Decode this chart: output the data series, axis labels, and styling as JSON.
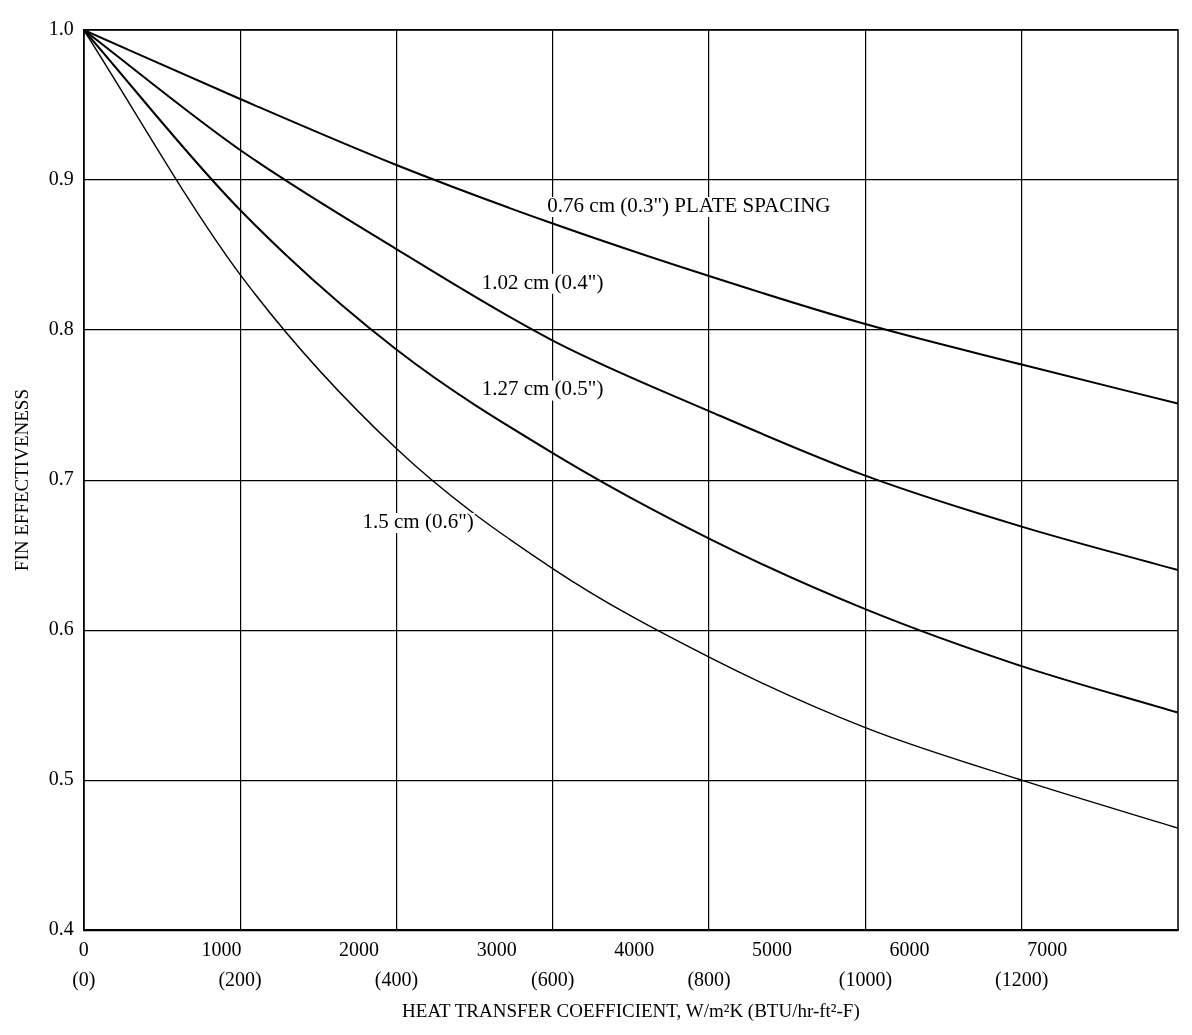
{
  "chart_data": {
    "type": "line",
    "xlabel": "HEAT TRANSFER COEFFICIENT, W/m²K (BTU/hr-ft²-F)",
    "ylabel": "FIN EFFECTIVENESS",
    "x": [
      0,
      1136,
      2271,
      3407,
      4543,
      5678,
      6814,
      7950
    ],
    "series": [
      {
        "name": "0.76 cm (0.3\") PLATE SPACING",
        "color": "#000000",
        "values": [
          1.0,
          0.954,
          0.91,
          0.871,
          0.836,
          0.804,
          0.777,
          0.751
        ]
      },
      {
        "name": "1.02 cm (0.4\")",
        "color": "#000000",
        "values": [
          1.0,
          0.92,
          0.854,
          0.793,
          0.746,
          0.703,
          0.669,
          0.64
        ]
      },
      {
        "name": "1.27 cm (0.5\")",
        "color": "#000000",
        "values": [
          1.0,
          0.88,
          0.787,
          0.718,
          0.661,
          0.614,
          0.576,
          0.545
        ]
      },
      {
        "name": "1.5 cm (0.6\")",
        "color": "#000000",
        "values": [
          1.0,
          0.837,
          0.721,
          0.641,
          0.582,
          0.535,
          0.5,
          0.468
        ]
      }
    ],
    "xlim": [
      0,
      7950
    ],
    "xticks": [
      0,
      1000,
      2000,
      3000,
      4000,
      5000,
      6000,
      7000
    ],
    "x2lim": [
      0,
      1400
    ],
    "x2ticks": [
      {
        "value": 0,
        "label": "(0)"
      },
      {
        "value": 200,
        "label": "(200)"
      },
      {
        "value": 400,
        "label": "(400)"
      },
      {
        "value": 600,
        "label": "(600)"
      },
      {
        "value": 800,
        "label": "(800)"
      },
      {
        "value": 1000,
        "label": "(1000)"
      },
      {
        "value": 1200,
        "label": "(1200)"
      }
    ],
    "ylim": [
      0.4,
      1.0
    ],
    "yticks": [
      {
        "value": 0.4,
        "label": "0.4"
      },
      {
        "value": 0.5,
        "label": "0.5"
      },
      {
        "value": 0.6,
        "label": "0.6"
      },
      {
        "value": 0.7,
        "label": "0.7"
      },
      {
        "value": 0.8,
        "label": "0.8"
      },
      {
        "value": 0.9,
        "label": "0.9"
      },
      {
        "value": 1.0,
        "label": "1.0"
      }
    ],
    "grid": true,
    "legend": false,
    "marker": "none",
    "line_style": "solid"
  }
}
